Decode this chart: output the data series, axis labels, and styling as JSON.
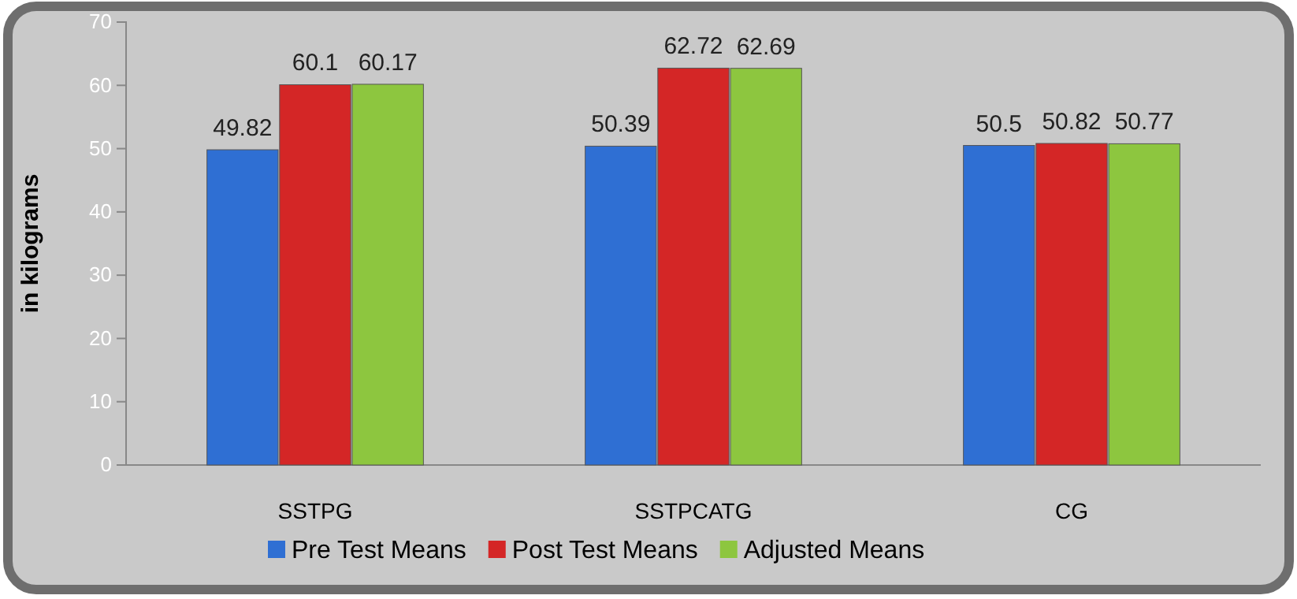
{
  "chart_data": {
    "type": "bar",
    "ylabel": "in kilograms",
    "categories": [
      "SSTPG",
      "SSTPCATG",
      "CG"
    ],
    "series": [
      {
        "name": "Pre Test Means",
        "color": "#2f6fd3",
        "values": [
          49.82,
          50.39,
          50.5
        ]
      },
      {
        "name": "Post Test Means",
        "color": "#d42626",
        "values": [
          60.1,
          62.72,
          50.82
        ]
      },
      {
        "name": "Adjusted Means",
        "color": "#8dc63f",
        "values": [
          60.17,
          62.69,
          50.77
        ]
      }
    ],
    "ylim": [
      0,
      70
    ],
    "yticks": [
      0,
      10,
      20,
      30,
      40,
      50,
      60,
      70
    ],
    "data_labels": true,
    "legend": "bottom",
    "grid": false
  }
}
